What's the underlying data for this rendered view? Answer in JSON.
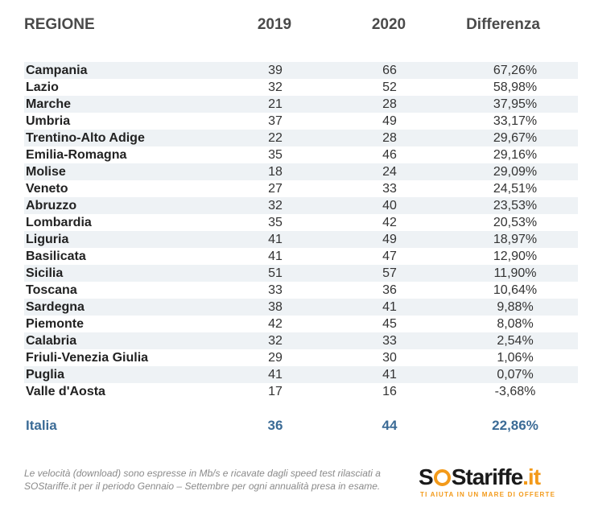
{
  "header": {
    "region": "REGIONE",
    "y2019": "2019",
    "y2020": "2020",
    "diff": "Differenza"
  },
  "rows": [
    {
      "region": "Campania",
      "y2019": "39",
      "y2020": "66",
      "diff": "67,26%"
    },
    {
      "region": "Lazio",
      "y2019": "32",
      "y2020": "52",
      "diff": "58,98%"
    },
    {
      "region": "Marche",
      "y2019": "21",
      "y2020": "28",
      "diff": "37,95%"
    },
    {
      "region": "Umbria",
      "y2019": "37",
      "y2020": "49",
      "diff": "33,17%"
    },
    {
      "region": "Trentino-Alto Adige",
      "y2019": "22",
      "y2020": "28",
      "diff": "29,67%"
    },
    {
      "region": "Emilia-Romagna",
      "y2019": "35",
      "y2020": "46",
      "diff": "29,16%"
    },
    {
      "region": "Molise",
      "y2019": "18",
      "y2020": "24",
      "diff": "29,09%"
    },
    {
      "region": "Veneto",
      "y2019": "27",
      "y2020": "33",
      "diff": "24,51%"
    },
    {
      "region": "Abruzzo",
      "y2019": "32",
      "y2020": "40",
      "diff": "23,53%"
    },
    {
      "region": "Lombardia",
      "y2019": "35",
      "y2020": "42",
      "diff": "20,53%"
    },
    {
      "region": "Liguria",
      "y2019": "41",
      "y2020": "49",
      "diff": "18,97%"
    },
    {
      "region": "Basilicata",
      "y2019": "41",
      "y2020": "47",
      "diff": "12,90%"
    },
    {
      "region": "Sicilia",
      "y2019": "51",
      "y2020": "57",
      "diff": "11,90%"
    },
    {
      "region": "Toscana",
      "y2019": "33",
      "y2020": "36",
      "diff": "10,64%"
    },
    {
      "region": "Sardegna",
      "y2019": "38",
      "y2020": "41",
      "diff": "9,88%"
    },
    {
      "region": "Piemonte",
      "y2019": "42",
      "y2020": "45",
      "diff": "8,08%"
    },
    {
      "region": "Calabria",
      "y2019": "32",
      "y2020": "33",
      "diff": "2,54%"
    },
    {
      "region": "Friuli-Venezia Giulia",
      "y2019": "29",
      "y2020": "30",
      "diff": "1,06%"
    },
    {
      "region": "Puglia",
      "y2019": "41",
      "y2020": "41",
      "diff": "0,07%"
    },
    {
      "region": "Valle d'Aosta",
      "y2019": "17",
      "y2020": "16",
      "diff": "-3,68%"
    }
  ],
  "total": {
    "region": "Italia",
    "y2019": "36",
    "y2020": "44",
    "diff": "22,86%"
  },
  "footnote": {
    "line1": "Le velocità (download) sono espresse in Mb/s e ricavate dagli speed test rilasciati a",
    "line2": "SOStariffe.it per il periodo Gennaio – Settembre per ogni annualità presa in esame."
  },
  "logo": {
    "text": "SOStariffe.it",
    "tagline": "TI AIUTA IN UN MARE DI OFFERTE"
  },
  "colors": {
    "accent": "#3b6b96",
    "row_shade": "#eef2f5",
    "brand_orange": "#f39a1a"
  }
}
